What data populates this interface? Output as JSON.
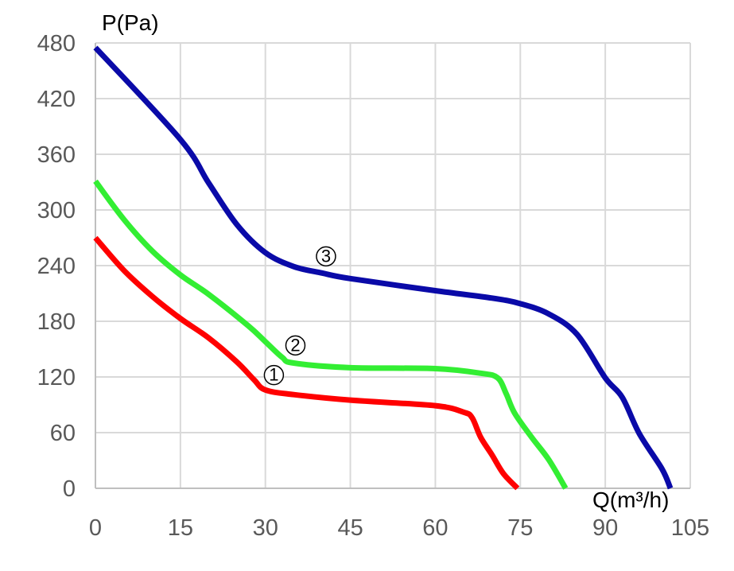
{
  "chart_data": {
    "type": "line",
    "title": "",
    "xlabel": "Q(m³/h)",
    "ylabel": "P(Pa)",
    "xlim": [
      0,
      105
    ],
    "ylim": [
      0,
      480
    ],
    "xticks": [
      "0",
      "15",
      "30",
      "45",
      "60",
      "75",
      "90",
      "105"
    ],
    "yticks": [
      "0",
      "60",
      "120",
      "180",
      "240",
      "300",
      "360",
      "420",
      "480"
    ],
    "grid": true,
    "series": [
      {
        "name": "①",
        "color": "#ff0000",
        "label_at": [
          31.5,
          122
        ],
        "x": [
          0,
          5,
          10,
          15,
          20,
          25,
          28,
          30,
          35,
          45,
          60,
          65,
          66.5,
          68,
          70,
          72,
          74.5
        ],
        "y": [
          270,
          235,
          207,
          183,
          162,
          136,
          117,
          106,
          101,
          95,
          89,
          82,
          76,
          55,
          36,
          16,
          0
        ]
      },
      {
        "name": "②",
        "color": "#33ee33",
        "label_at": [
          35.3,
          154
        ],
        "x": [
          0,
          5,
          10,
          15,
          20,
          27,
          30,
          33,
          35,
          45,
          60,
          68,
          71,
          72.5,
          74,
          77,
          80,
          83
        ],
        "y": [
          331,
          290,
          256,
          230,
          209,
          175,
          158,
          141,
          135,
          130,
          129,
          124,
          119,
          102,
          81,
          55,
          31,
          0
        ]
      },
      {
        "name": "③",
        "color": "#0a0aa8",
        "label_at": [
          40.7,
          250
        ],
        "x": [
          0,
          15,
          20,
          25,
          30,
          35,
          40,
          45,
          60,
          70,
          75,
          80,
          85,
          90,
          93,
          96,
          100,
          101.5
        ],
        "y": [
          475,
          376,
          329,
          284,
          254,
          239,
          232,
          226,
          213,
          205,
          199,
          188,
          166,
          119,
          98,
          59,
          21,
          0
        ]
      }
    ]
  }
}
